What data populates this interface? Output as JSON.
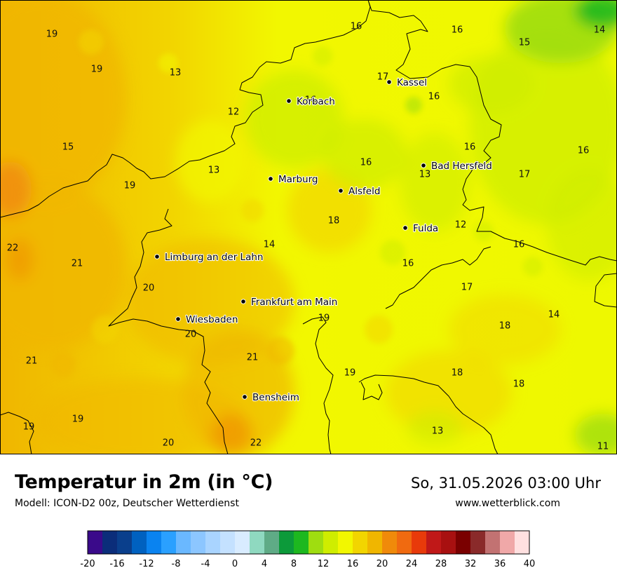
{
  "map": {
    "cities": [
      {
        "name": "Kassel"
      },
      {
        "name": "Korbach"
      },
      {
        "name": "Bad Hersfeld"
      },
      {
        "name": "Marburg"
      },
      {
        "name": "Alsfeld"
      },
      {
        "name": "Fulda"
      },
      {
        "name": "Limburg an der Lahn"
      },
      {
        "name": "Frankfurt am Main"
      },
      {
        "name": "Wiesbaden"
      },
      {
        "name": "Bensheim"
      }
    ],
    "temperature_labels": [
      "19",
      "19",
      "13",
      "16",
      "16",
      "14",
      "15",
      "17",
      "16",
      "16",
      "12",
      "15",
      "16",
      "13",
      "16",
      "16",
      "13",
      "19",
      "17",
      "14",
      "18",
      "12",
      "22",
      "21",
      "16",
      "16",
      "20",
      "17",
      "19",
      "14",
      "18",
      "20",
      "21",
      "19",
      "21",
      "18",
      "18",
      "19",
      "19",
      "13",
      "20",
      "22",
      "11"
    ]
  },
  "footer": {
    "title": "Temperatur in 2m (in °C)",
    "model": "Modell: ICON-D2 00z, Deutscher Wetterdienst",
    "date": "So, 31.05.2026 03:00 Uhr",
    "site": "www.wetterblick.com"
  },
  "legend": {
    "colors": [
      "#3a0a8a",
      "#0b2d7a",
      "#0a3f8c",
      "#0061c0",
      "#0a83f0",
      "#2aa0ff",
      "#6ab8ff",
      "#8cc6ff",
      "#a9d4ff",
      "#c4e1ff",
      "#d9ecff",
      "#8fd9c0",
      "#5fab86",
      "#0c9a3a",
      "#1db81f",
      "#9fdd10",
      "#cfed00",
      "#f2f700",
      "#f2d500",
      "#f0b600",
      "#f08a0a",
      "#f06a10",
      "#e83a0a",
      "#c01818",
      "#a81010",
      "#7a0000",
      "#8a2a2a",
      "#c27272",
      "#f0a8a8",
      "#ffe0e0"
    ],
    "ticks": [
      "-20",
      "-16",
      "-12",
      "-8",
      "-4",
      "0",
      "4",
      "8",
      "12",
      "16",
      "20",
      "24",
      "28",
      "32",
      "36",
      "40"
    ]
  }
}
